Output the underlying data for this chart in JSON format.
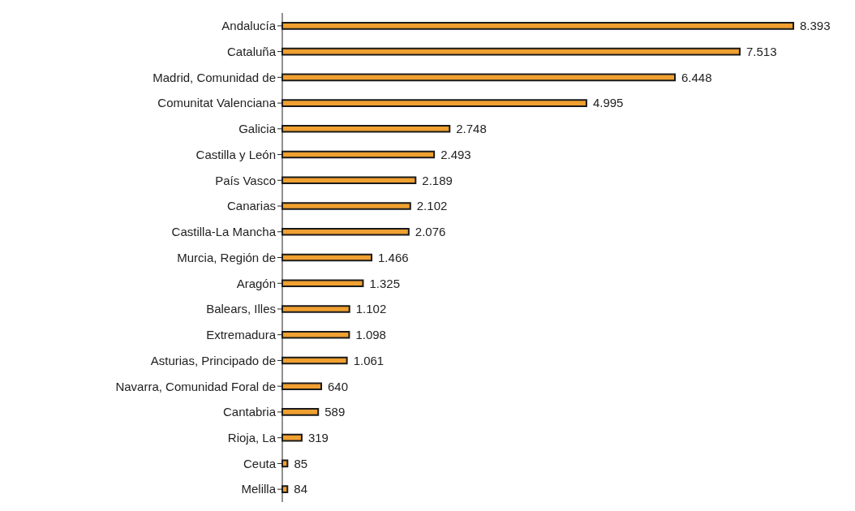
{
  "chart_data": {
    "type": "bar",
    "orientation": "horizontal",
    "categories": [
      "Andalucía",
      "Cataluña",
      "Madrid, Comunidad de",
      "Comunitat Valenciana",
      "Galicia",
      "Castilla y León",
      "País Vasco",
      "Canarias",
      "Castilla-La Mancha",
      "Murcia, Región de",
      "Aragón",
      "Balears, Illes",
      "Extremadura",
      "Asturias, Principado de",
      "Navarra, Comunidad Foral de",
      "Cantabria",
      "Rioja, La",
      "Ceuta",
      "Melilla"
    ],
    "values": [
      8393,
      7513,
      6448,
      4995,
      2748,
      2493,
      2189,
      2102,
      2076,
      1466,
      1325,
      1102,
      1098,
      1061,
      640,
      589,
      319,
      85,
      84
    ],
    "value_labels": [
      "8.393",
      "7.513",
      "6.448",
      "4.995",
      "2.748",
      "2.493",
      "2.189",
      "2.102",
      "2.076",
      "1.466",
      "1.325",
      "1.102",
      "1.098",
      "1.061",
      "640",
      "589",
      "319",
      "85",
      "84"
    ],
    "color": "#f0a030"
  }
}
